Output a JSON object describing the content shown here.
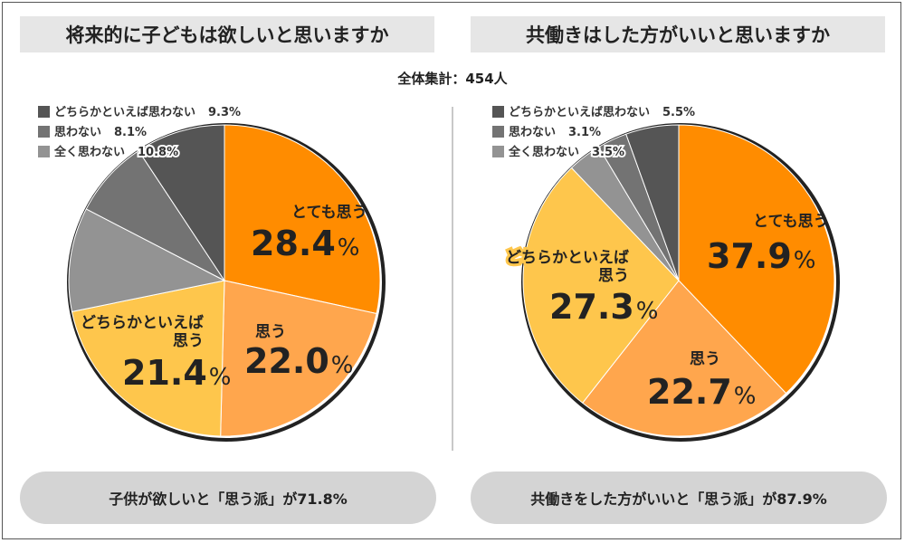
{
  "total_label": "全体集計：454人",
  "chart_data": [
    {
      "type": "pie",
      "title": "将来的に子どもは欲しいと思いますか",
      "slices": [
        {
          "label": "とても思う",
          "value": 28.4,
          "display": "28.4%",
          "color": "#ff8c00"
        },
        {
          "label": "思う",
          "value": 22.0,
          "display": "22.0%",
          "color": "#ffa64d"
        },
        {
          "label": "どちらかといえば思う",
          "label_lines": [
            "どちらかといえば",
            "思う"
          ],
          "value": 21.4,
          "display": "21.4%",
          "color": "#fec64c"
        },
        {
          "label": "全く思わない",
          "value": 10.8,
          "display": "10.8%",
          "color": "#939393"
        },
        {
          "label": "思わない",
          "value": 8.1,
          "display": "8.1%",
          "color": "#737373"
        },
        {
          "label": "どちらかといえば思わない",
          "value": 9.3,
          "display": "9.3%",
          "color": "#555555"
        }
      ],
      "legend": [
        {
          "label": "どちらかといえば思わない",
          "display": "9.3%",
          "color": "#555555"
        },
        {
          "label": "思わない",
          "display": "8.1%",
          "color": "#737373"
        },
        {
          "label": "全く思わない",
          "display": "10.8%",
          "color": "#939393"
        }
      ],
      "summary": "子供が欲しいと「思う派」が71.8%"
    },
    {
      "type": "pie",
      "title": "共働きはした方がいいと思いますか",
      "slices": [
        {
          "label": "とても思う",
          "value": 37.9,
          "display": "37.9%",
          "color": "#ff8c00"
        },
        {
          "label": "思う",
          "value": 22.7,
          "display": "22.7%",
          "color": "#ffa64d"
        },
        {
          "label": "どちらかといえば思う",
          "label_lines": [
            "どちらかといえば",
            "思う"
          ],
          "value": 27.3,
          "display": "27.3%",
          "color": "#fec64c"
        },
        {
          "label": "全く思わない",
          "value": 3.5,
          "display": "3.5%",
          "color": "#939393"
        },
        {
          "label": "思わない",
          "value": 3.1,
          "display": "3.1%",
          "color": "#737373"
        },
        {
          "label": "どちらかといえば思わない",
          "value": 5.5,
          "display": "5.5%",
          "color": "#555555"
        }
      ],
      "legend": [
        {
          "label": "どちらかといえば思わない",
          "display": "5.5%",
          "color": "#555555"
        },
        {
          "label": "思わない",
          "display": "3.1%",
          "color": "#737373"
        },
        {
          "label": "全く思わない",
          "display": "3.5%",
          "color": "#939393"
        }
      ],
      "summary": "共働きをした方がいいと「思う派」が87.9%"
    }
  ]
}
